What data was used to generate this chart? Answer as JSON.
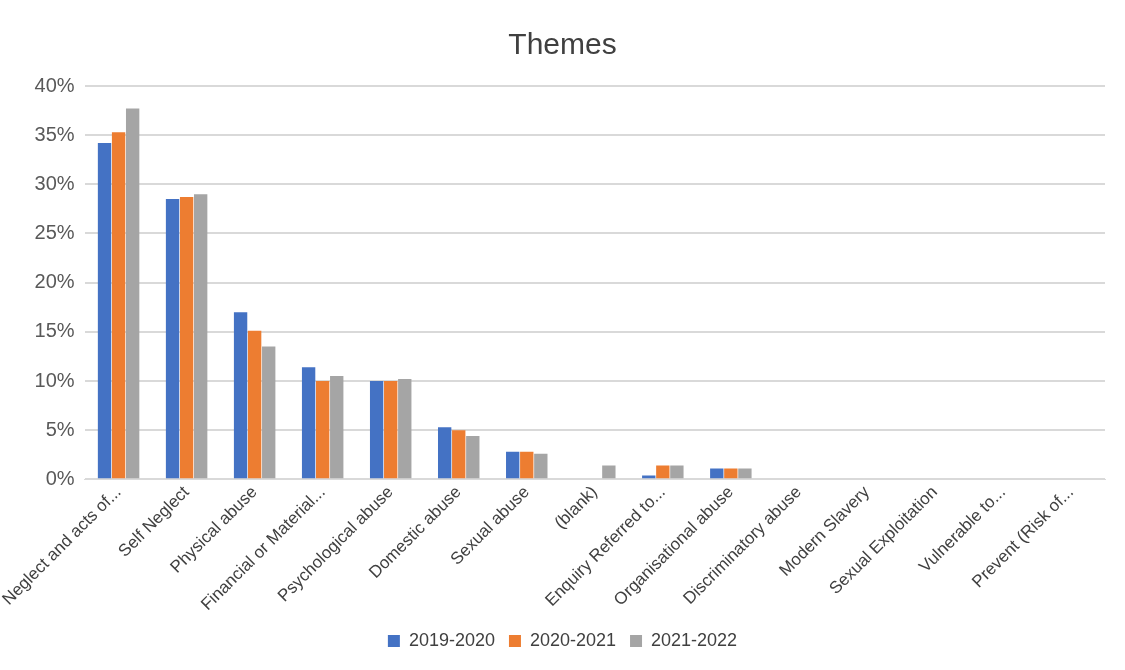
{
  "chart_data": {
    "type": "bar",
    "title": "Themes",
    "categories": [
      "Neglect and acts of...",
      "Self Neglect",
      "Physical abuse",
      "Financial or Material...",
      "Psychological abuse",
      "Domestic abuse",
      "Sexual abuse",
      "(blank)",
      "Enquiry Referred to...",
      "Organisational abuse",
      "Discriminatory abuse",
      "Modern Slavery",
      "Sexual Exploitation",
      "Vulnerable to...",
      "Prevent (Risk of..."
    ],
    "series": [
      {
        "name": "2019-2020",
        "color": "#4472c4",
        "values": [
          34.2,
          28.5,
          17.0,
          11.4,
          10.0,
          5.3,
          2.8,
          0,
          0.4,
          1.1,
          0,
          0,
          0,
          0,
          0
        ]
      },
      {
        "name": "2020-2021",
        "color": "#ed7d31",
        "values": [
          35.3,
          28.7,
          15.1,
          10.0,
          10.0,
          5.0,
          2.8,
          0,
          1.4,
          1.1,
          0,
          0,
          0,
          0,
          0
        ]
      },
      {
        "name": "2021-2022",
        "color": "#a5a5a5",
        "values": [
          37.7,
          29.0,
          13.5,
          10.5,
          10.2,
          4.4,
          2.6,
          1.4,
          1.4,
          1.1,
          0,
          0,
          0,
          0,
          0
        ]
      }
    ],
    "ylim": [
      0,
      40
    ],
    "yticks": [
      {
        "value": 0,
        "label": "0%"
      },
      {
        "value": 5,
        "label": "5%"
      },
      {
        "value": 10,
        "label": "10%"
      },
      {
        "value": 15,
        "label": "15%"
      },
      {
        "value": 20,
        "label": "20%"
      },
      {
        "value": 25,
        "label": "25%"
      },
      {
        "value": 30,
        "label": "30%"
      },
      {
        "value": 35,
        "label": "35%"
      },
      {
        "value": 40,
        "label": "40%"
      }
    ],
    "grid": "y",
    "legend": "bottom"
  }
}
